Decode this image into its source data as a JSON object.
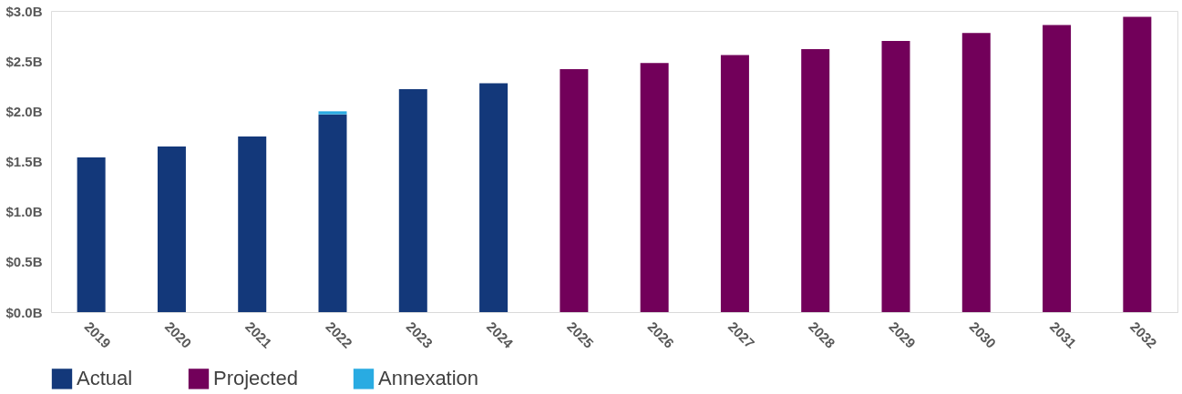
{
  "chart_data": {
    "type": "bar",
    "stacked": true,
    "categories": [
      "2019",
      "2020",
      "2021",
      "2022",
      "2023",
      "2024",
      "2025",
      "2026",
      "2027",
      "2028",
      "2029",
      "2030",
      "2031",
      "2032"
    ],
    "series": [
      {
        "name": "Actual",
        "color": "#13387a",
        "values": [
          1.54,
          1.65,
          1.75,
          1.97,
          2.22,
          2.28,
          null,
          null,
          null,
          null,
          null,
          null,
          null,
          null
        ]
      },
      {
        "name": "Projected",
        "color": "#72005a",
        "values": [
          null,
          null,
          null,
          null,
          null,
          null,
          2.42,
          2.48,
          2.56,
          2.62,
          2.7,
          2.78,
          2.86,
          2.94
        ]
      },
      {
        "name": "Annexation",
        "color": "#29abe2",
        "values": [
          null,
          null,
          null,
          0.03,
          null,
          null,
          null,
          null,
          null,
          null,
          null,
          null,
          null,
          null
        ]
      }
    ],
    "ylim": [
      0,
      3
    ],
    "yticks": [
      {
        "value": 0,
        "label": "$0.0B"
      },
      {
        "value": 0.5,
        "label": "$0.5B"
      },
      {
        "value": 1,
        "label": "$1.0B"
      },
      {
        "value": 1.5,
        "label": "$1.5B"
      },
      {
        "value": 2,
        "label": "$2.0B"
      },
      {
        "value": 2.5,
        "label": "$2.5B"
      },
      {
        "value": 3,
        "label": "$3.0B"
      }
    ],
    "grid": false,
    "legend": "bottom"
  }
}
